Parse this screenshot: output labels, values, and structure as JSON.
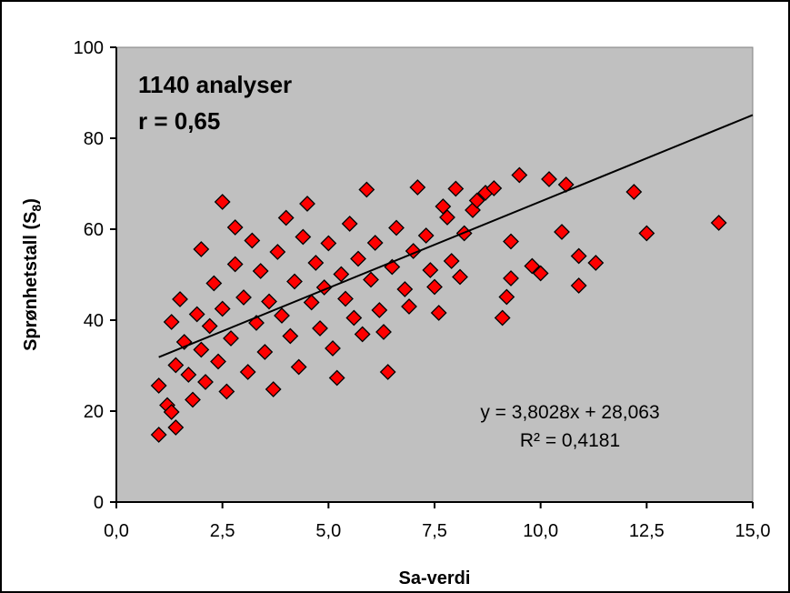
{
  "chart_data": {
    "type": "scatter",
    "title": "",
    "xlabel": "Sa-verdi",
    "ylabel": "Sprønhetstall (S",
    "ylabel_sub": "8",
    "ylabel_close": ")",
    "xlim": [
      0,
      15
    ],
    "ylim": [
      0,
      100
    ],
    "x_ticks": [
      "0,0",
      "2,5",
      "5,0",
      "7,5",
      "10,0",
      "12,5",
      "15,0"
    ],
    "y_ticks": [
      "0",
      "20",
      "40",
      "60",
      "80",
      "100"
    ],
    "grid": false,
    "annotations": {
      "n_label": "1140 analyser",
      "r_label": "r = 0,65",
      "equation": "y = 3,8028x + 28,063",
      "r_squared": "R² = 0,4181"
    },
    "trendline": {
      "slope": 3.8028,
      "intercept": 28.063,
      "x_start": 1.0,
      "x_end": 15.0
    },
    "colors": {
      "plot_bg": "#c0c0c0",
      "marker_fill": "#ff0000",
      "marker_edge": "#000000",
      "line": "#000000"
    },
    "marker": "diamond",
    "series": [
      {
        "points": [
          [
            1.0,
            14.8
          ],
          [
            1.0,
            25.6
          ],
          [
            1.2,
            21.3
          ],
          [
            1.3,
            19.8
          ],
          [
            1.4,
            16.4
          ],
          [
            1.3,
            39.6
          ],
          [
            1.4,
            30.1
          ],
          [
            1.5,
            44.6
          ],
          [
            1.6,
            35.2
          ],
          [
            1.7,
            28.0
          ],
          [
            1.8,
            22.5
          ],
          [
            1.9,
            41.3
          ],
          [
            2.0,
            55.6
          ],
          [
            2.0,
            33.5
          ],
          [
            2.1,
            26.4
          ],
          [
            2.2,
            38.7
          ],
          [
            2.3,
            48.1
          ],
          [
            2.4,
            30.9
          ],
          [
            2.5,
            66.0
          ],
          [
            2.5,
            42.5
          ],
          [
            2.6,
            24.3
          ],
          [
            2.7,
            36.0
          ],
          [
            2.8,
            52.3
          ],
          [
            2.8,
            60.4
          ],
          [
            3.0,
            45.0
          ],
          [
            3.1,
            28.6
          ],
          [
            3.2,
            57.5
          ],
          [
            3.3,
            39.4
          ],
          [
            3.4,
            50.8
          ],
          [
            3.5,
            33.0
          ],
          [
            3.6,
            44.1
          ],
          [
            3.7,
            24.8
          ],
          [
            3.8,
            55.0
          ],
          [
            3.9,
            41.0
          ],
          [
            4.0,
            62.5
          ],
          [
            4.1,
            36.5
          ],
          [
            4.2,
            48.5
          ],
          [
            4.3,
            29.7
          ],
          [
            4.4,
            58.3
          ],
          [
            4.5,
            65.6
          ],
          [
            4.6,
            43.9
          ],
          [
            4.7,
            52.6
          ],
          [
            4.8,
            38.2
          ],
          [
            4.9,
            47.2
          ],
          [
            5.0,
            56.9
          ],
          [
            5.1,
            33.8
          ],
          [
            5.2,
            27.3
          ],
          [
            5.3,
            50.1
          ],
          [
            5.4,
            44.7
          ],
          [
            5.5,
            61.2
          ],
          [
            5.6,
            40.5
          ],
          [
            5.7,
            53.5
          ],
          [
            5.8,
            36.9
          ],
          [
            5.9,
            68.7
          ],
          [
            6.0,
            48.9
          ],
          [
            6.1,
            57.0
          ],
          [
            6.2,
            42.2
          ],
          [
            6.3,
            37.4
          ],
          [
            6.4,
            28.6
          ],
          [
            6.5,
            51.7
          ],
          [
            6.6,
            60.3
          ],
          [
            6.8,
            46.8
          ],
          [
            6.9,
            43.0
          ],
          [
            7.0,
            55.2
          ],
          [
            7.1,
            69.2
          ],
          [
            7.3,
            58.6
          ],
          [
            7.4,
            51.0
          ],
          [
            7.5,
            47.3
          ],
          [
            7.6,
            41.6
          ],
          [
            7.7,
            65.0
          ],
          [
            7.8,
            62.6
          ],
          [
            7.9,
            53.0
          ],
          [
            8.0,
            68.9
          ],
          [
            8.1,
            49.5
          ],
          [
            8.2,
            59.1
          ],
          [
            8.4,
            64.2
          ],
          [
            8.5,
            66.3
          ],
          [
            8.7,
            68.0
          ],
          [
            8.9,
            69.0
          ],
          [
            9.1,
            40.5
          ],
          [
            9.2,
            45.1
          ],
          [
            9.3,
            49.2
          ],
          [
            9.3,
            57.3
          ],
          [
            9.5,
            71.9
          ],
          [
            9.8,
            51.9
          ],
          [
            10.0,
            50.3
          ],
          [
            10.2,
            71.0
          ],
          [
            10.5,
            59.4
          ],
          [
            10.6,
            69.8
          ],
          [
            10.9,
            47.6
          ],
          [
            10.9,
            54.1
          ],
          [
            11.3,
            52.6
          ],
          [
            12.2,
            68.2
          ],
          [
            12.5,
            59.1
          ],
          [
            14.2,
            61.4
          ]
        ]
      }
    ]
  }
}
